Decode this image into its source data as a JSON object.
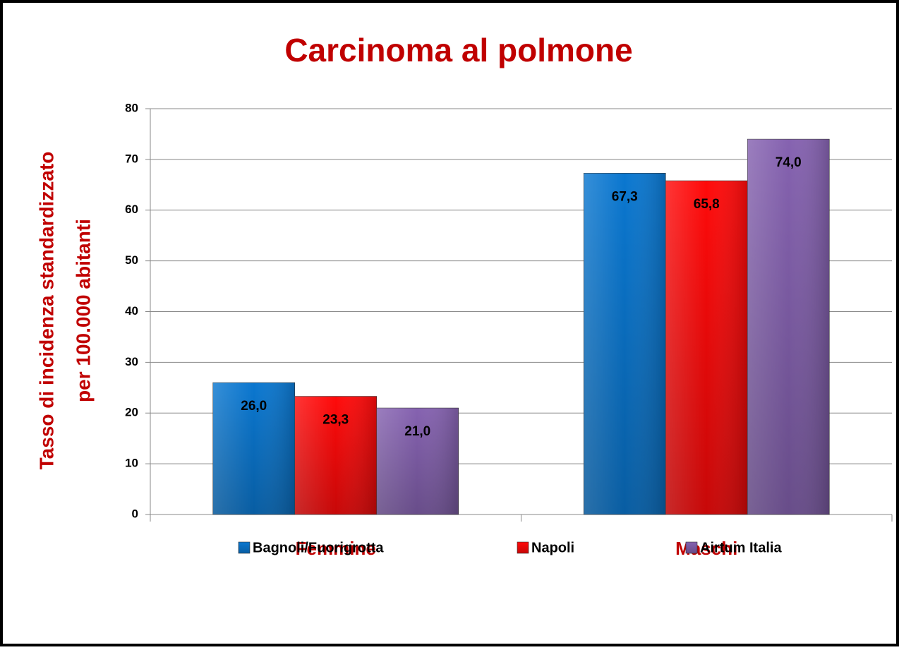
{
  "chart_data": {
    "type": "bar",
    "title": "Carcinoma al polmone",
    "ylabel": [
      "Tasso di incidenza standardizzato",
      "per 100.000 abitanti"
    ],
    "categories": [
      "Femmine",
      "Maschi"
    ],
    "series": [
      {
        "name": "Bagnoli/Fuorigrotta",
        "color": "#0a77d0",
        "values": [
          26.0,
          67.3
        ],
        "value_labels": [
          "26,0",
          "67,3"
        ]
      },
      {
        "name": "Napoli",
        "color": "#ff0a0a",
        "values": [
          23.3,
          65.8
        ],
        "value_labels": [
          "23,3",
          "65,8"
        ]
      },
      {
        "name": "Airtum  Italia",
        "color": "#8562b0",
        "values": [
          21.0,
          74.0
        ],
        "value_labels": [
          "21,0",
          "74,0"
        ]
      }
    ],
    "ylim": [
      0,
      80
    ],
    "yticks": [
      0,
      10,
      20,
      30,
      40,
      50,
      60,
      70,
      80
    ],
    "grid": true,
    "legend": "bottom"
  }
}
